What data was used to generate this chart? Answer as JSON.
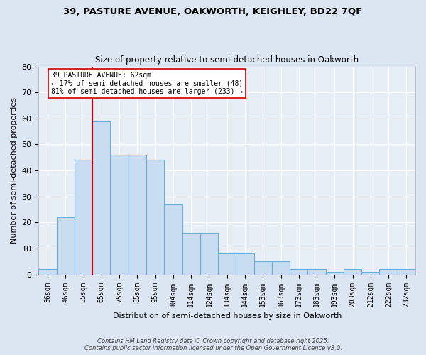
{
  "title1": "39, PASTURE AVENUE, OAKWORTH, KEIGHLEY, BD22 7QF",
  "title2": "Size of property relative to semi-detached houses in Oakworth",
  "xlabel": "Distribution of semi-detached houses by size in Oakworth",
  "ylabel": "Number of semi-detached properties",
  "categories": [
    "36sqm",
    "46sqm",
    "55sqm",
    "65sqm",
    "75sqm",
    "85sqm",
    "95sqm",
    "104sqm",
    "114sqm",
    "124sqm",
    "134sqm",
    "144sqm",
    "153sqm",
    "163sqm",
    "173sqm",
    "183sqm",
    "193sqm",
    "203sqm",
    "212sqm",
    "222sqm",
    "232sqm"
  ],
  "bar_values": [
    2,
    22,
    44,
    59,
    46,
    46,
    44,
    27,
    16,
    16,
    8,
    8,
    5,
    5,
    2,
    2,
    1,
    2,
    1,
    2,
    2
  ],
  "bar_color": "#c9ddf0",
  "bar_edge_color": "#6baed6",
  "vline_x": 2.5,
  "vline_color": "#cc0000",
  "annotation_title": "39 PASTURE AVENUE: 62sqm",
  "annotation_line1": "← 17% of semi-detached houses are smaller (48)",
  "annotation_line2": "81% of semi-detached houses are larger (233) →",
  "annotation_box_color": "#cc0000",
  "ylim": [
    0,
    80
  ],
  "yticks": [
    0,
    10,
    20,
    30,
    40,
    50,
    60,
    70,
    80
  ],
  "footer": "Contains HM Land Registry data © Crown copyright and database right 2025.\nContains public sector information licensed under the Open Government Licence v3.0.",
  "bg_color": "#dce6f2",
  "plot_bg_color": "#e8eef6"
}
